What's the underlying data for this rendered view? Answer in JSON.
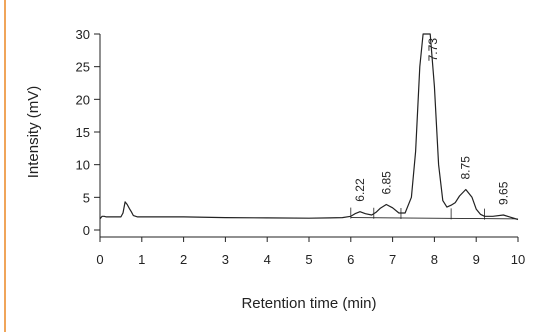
{
  "colors": {
    "accent": "#f0a55a",
    "ink": "#222222"
  },
  "chart_data": {
    "type": "line",
    "xlabel": "Retention time (min)",
    "ylabel": "Intensity (mV)",
    "xlim": [
      0,
      10
    ],
    "ylim": [
      0,
      30
    ],
    "xticks": [
      0,
      1,
      2,
      3,
      4,
      5,
      6,
      7,
      8,
      9,
      10
    ],
    "yticks": [
      0,
      5,
      10,
      15,
      20,
      25,
      30
    ],
    "grid": false,
    "series": [
      {
        "x": [
          0,
          0.05,
          0.1,
          0.15,
          0.2,
          0.5,
          0.55,
          0.6,
          0.65,
          0.7,
          0.75,
          0.8,
          0.9,
          1.5,
          2.0,
          3.0,
          4.0,
          5.0,
          5.5,
          5.8,
          6.0,
          6.1,
          6.22,
          6.35,
          6.5,
          6.6,
          6.7,
          6.85,
          7.0,
          7.15,
          7.3,
          7.45,
          7.55,
          7.65,
          7.73,
          7.8,
          7.9,
          8.0,
          8.1,
          8.2,
          8.3,
          8.4,
          8.5,
          8.6,
          8.75,
          8.9,
          9.0,
          9.1,
          9.2,
          9.4,
          9.65,
          9.8,
          10.0
        ],
        "y": [
          1.7,
          2.1,
          2.1,
          2.0,
          2.0,
          2.0,
          2.6,
          4.3,
          3.9,
          3.3,
          2.8,
          2.2,
          2.0,
          2.0,
          2.0,
          1.9,
          1.85,
          1.8,
          1.85,
          1.9,
          2.1,
          2.5,
          2.8,
          2.5,
          2.3,
          2.7,
          3.3,
          3.9,
          3.4,
          2.6,
          2.6,
          5.0,
          12.0,
          25.0,
          30.0,
          30.0,
          30.0,
          22.0,
          10.0,
          4.5,
          3.5,
          3.8,
          4.2,
          5.2,
          6.2,
          5.0,
          3.2,
          2.4,
          2.1,
          2.1,
          2.3,
          2.0,
          1.6
        ]
      }
    ],
    "peak_labels": [
      {
        "x": 6.22,
        "y": 2.8,
        "label": "6.22"
      },
      {
        "x": 6.85,
        "y": 3.9,
        "label": "6.85"
      },
      {
        "x": 7.73,
        "y": 30,
        "label": "7.73"
      },
      {
        "x": 8.75,
        "y": 6.2,
        "label": "8.75"
      },
      {
        "x": 9.65,
        "y": 2.3,
        "label": "9.65"
      }
    ],
    "baseline": {
      "x": [
        6.0,
        10.0
      ],
      "y": [
        1.9,
        1.7
      ]
    },
    "integration_markers_x": [
      6.0,
      6.55,
      7.2,
      8.4,
      9.2
    ]
  }
}
